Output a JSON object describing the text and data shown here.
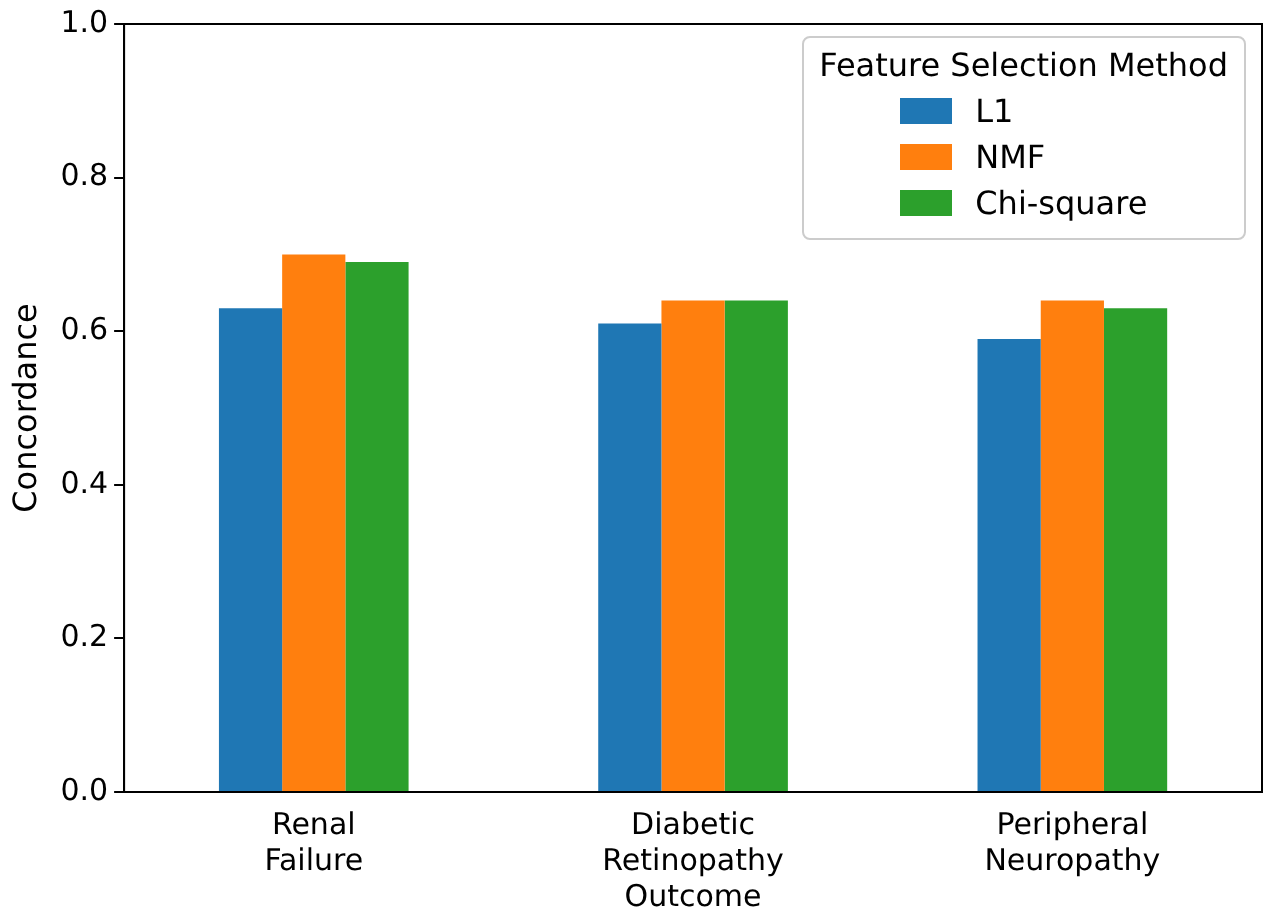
{
  "chart_data": {
    "type": "bar",
    "ylabel": "Concordance",
    "legend_title": "Feature Selection Method",
    "legend": "top right",
    "grid": false,
    "categories": [
      "Renal\nFailure",
      "Diabetic\nRetinopathy\nOutcome",
      "Peripheral\nNeuropathy"
    ],
    "series": [
      {
        "name": "L1",
        "color": "#1f77b4",
        "values": [
          0.63,
          0.61,
          0.59
        ]
      },
      {
        "name": "NMF",
        "color": "#ff7f0e",
        "values": [
          0.7,
          0.64,
          0.64
        ]
      },
      {
        "name": "Chi-square",
        "color": "#2ca02c",
        "values": [
          0.69,
          0.64,
          0.63
        ]
      }
    ],
    "ylim": [
      0,
      1
    ],
    "yticks": [
      {
        "value": 0,
        "label": "0.0"
      },
      {
        "value": 0.2,
        "label": "0.2"
      },
      {
        "value": 0.4,
        "label": "0.4"
      },
      {
        "value": 0.6,
        "label": "0.6"
      },
      {
        "value": 0.8,
        "label": "0.8"
      },
      {
        "value": 1,
        "label": "1.0"
      }
    ]
  }
}
